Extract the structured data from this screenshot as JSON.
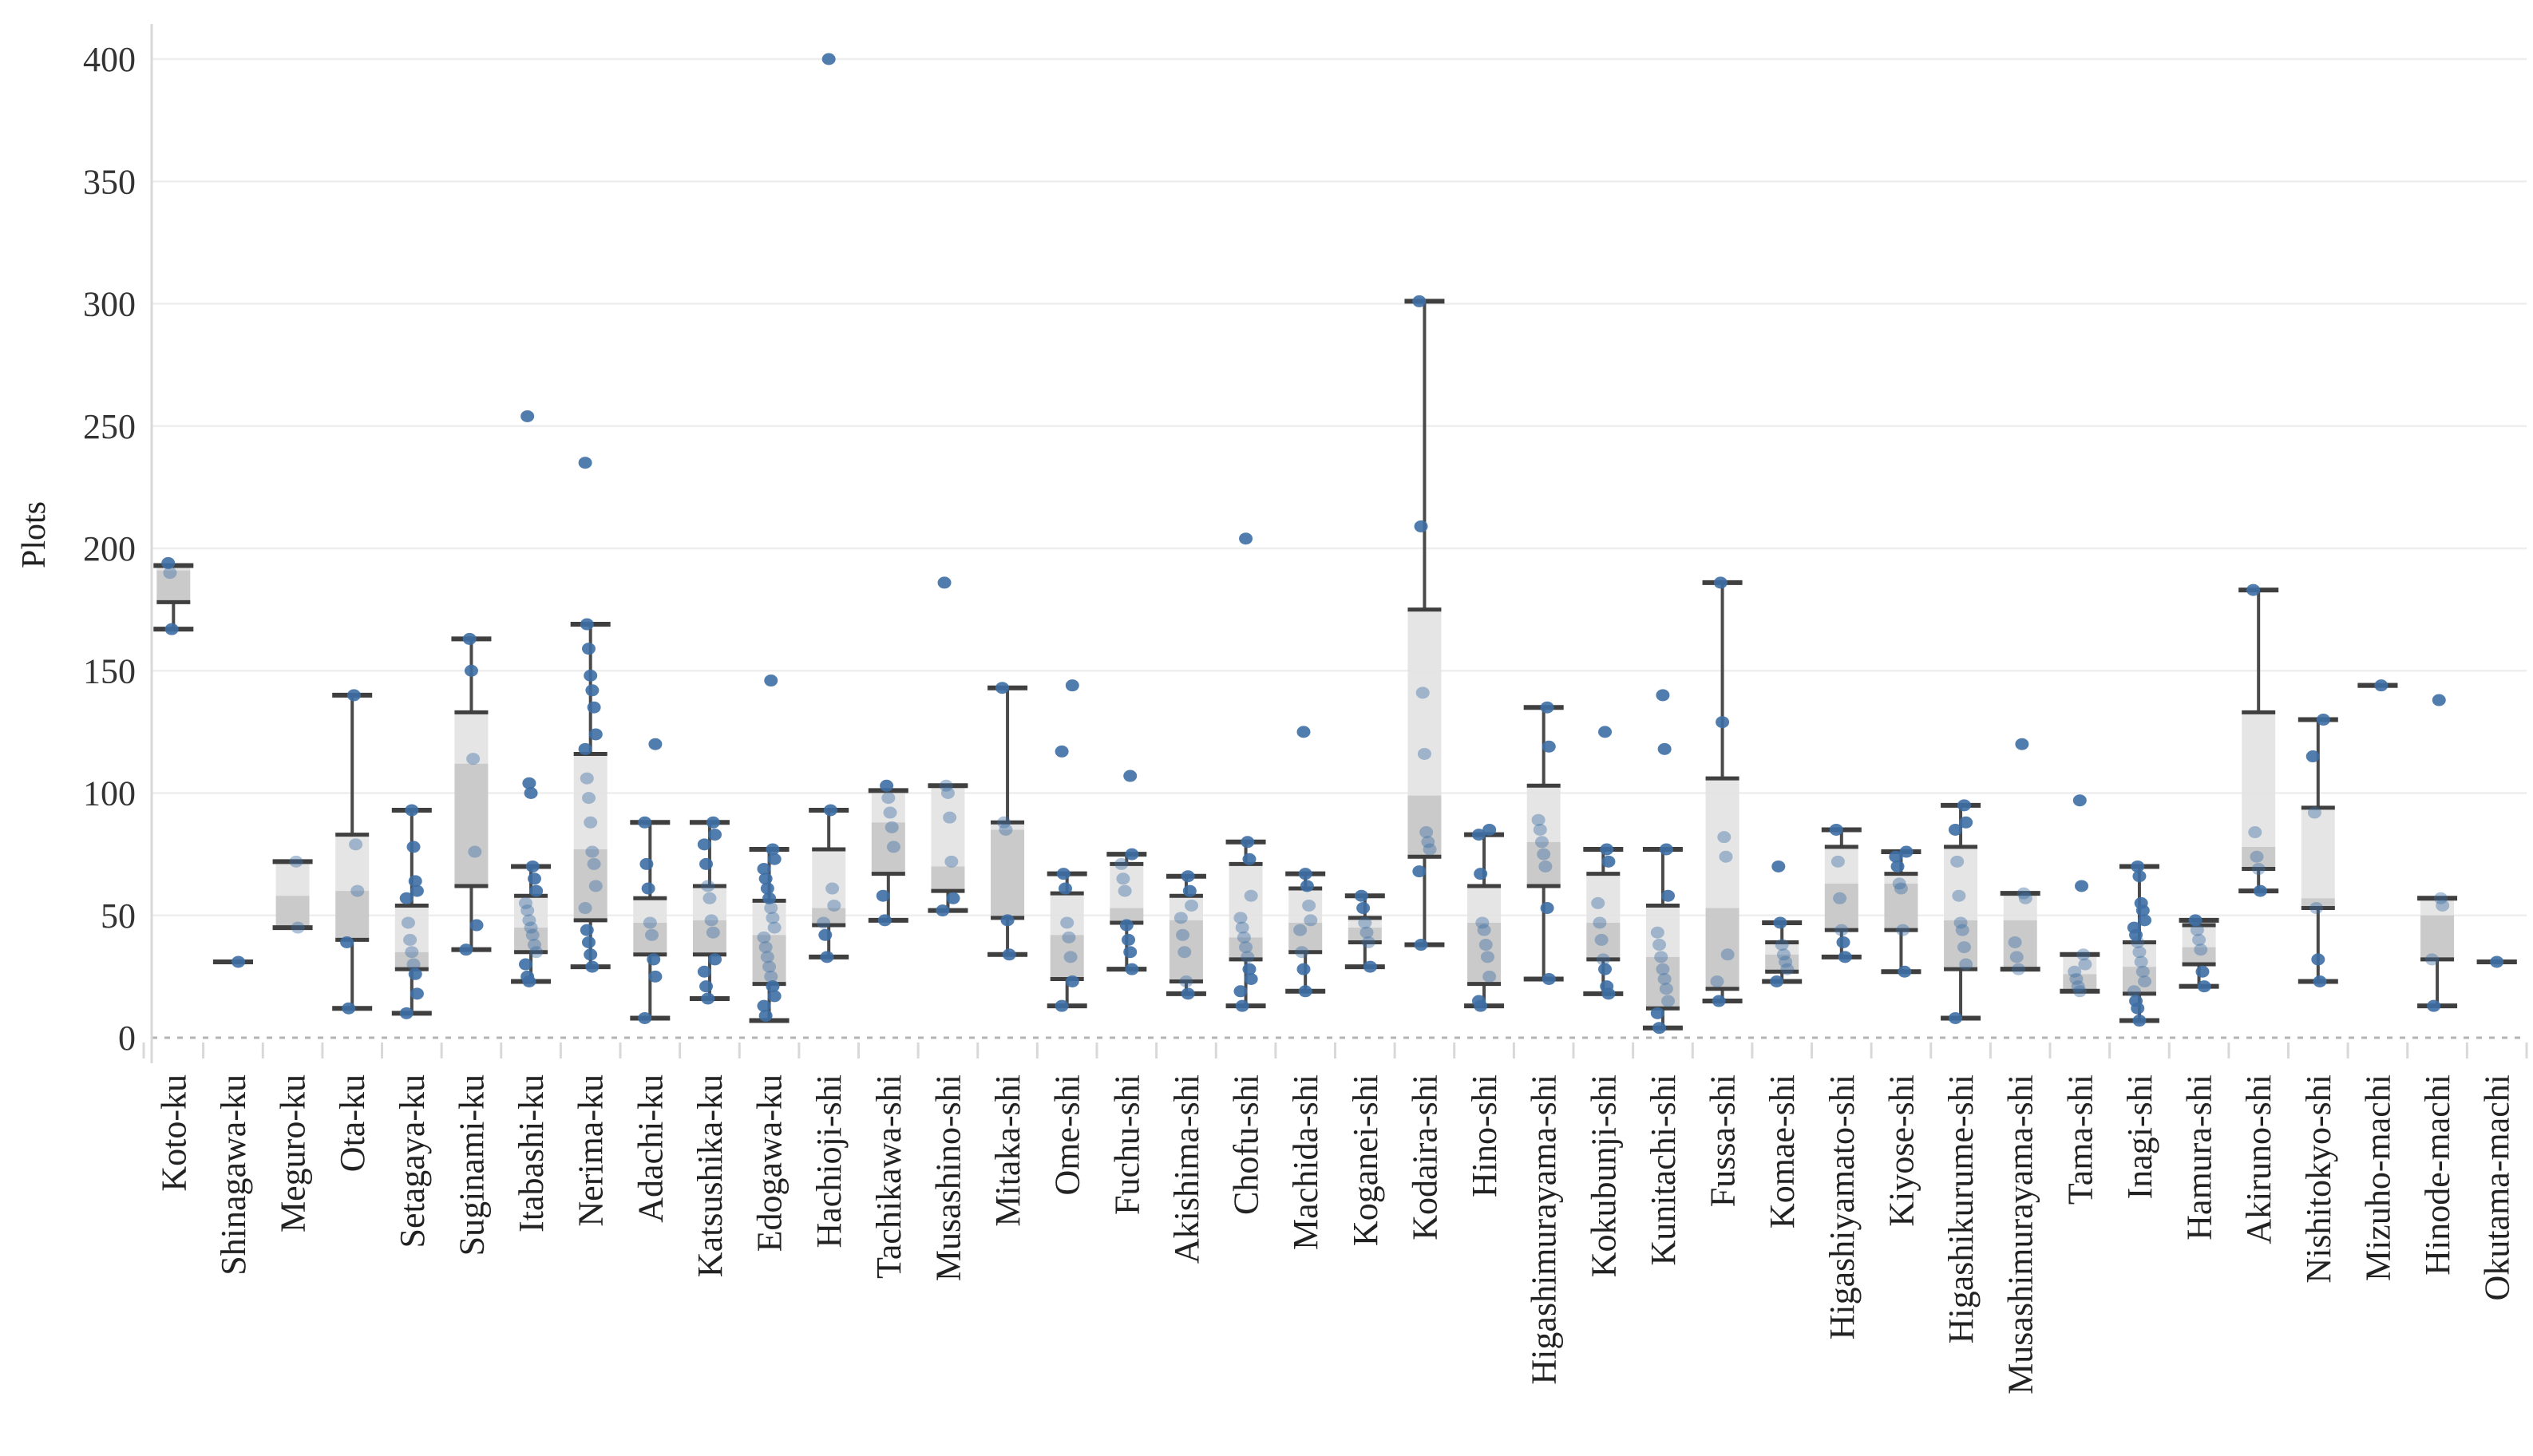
{
  "chart_data": {
    "type": "boxplot-with-points",
    "title": "",
    "ylabel": "Plots",
    "xlabel": "",
    "ylim": [
      0,
      420
    ],
    "yticks": [
      0,
      50,
      100,
      150,
      200,
      250,
      300,
      350,
      400
    ],
    "grid": "horizontal",
    "legend": "none",
    "categories": [
      "Koto-ku",
      "Shinagawa-ku",
      "Meguro-ku",
      "Ota-ku",
      "Setagaya-ku",
      "Suginami-ku",
      "Itabashi-ku",
      "Nerima-ku",
      "Adachi-ku",
      "Katsushika-ku",
      "Edogawa-ku",
      "Hachioji-shi",
      "Tachikawa-shi",
      "Musashino-shi",
      "Mitaka-shi",
      "Ome-shi",
      "Fuchu-shi",
      "Akishima-shi",
      "Chofu-shi",
      "Machida-shi",
      "Koganei-shi",
      "Kodaira-shi",
      "Hino-shi",
      "Higashimurayama-shi",
      "Kokubunji-shi",
      "Kunitachi-shi",
      "Fussa-shi",
      "Komae-shi",
      "Higashiyamato-shi",
      "Kiyose-shi",
      "Higashikurume-shi",
      "Musashimurayama-shi",
      "Tama-shi",
      "Inagi-shi",
      "Hamura-shi",
      "Akiruno-shi",
      "Nishitokyo-shi",
      "Mizuho-machi",
      "Hinode-machi",
      "Okutama-machi"
    ],
    "series": [
      {
        "name": "Koto-ku",
        "box": {
          "min": 167,
          "q1": 178,
          "median": 191,
          "q3": 193,
          "max": 193
        },
        "points": [
          194,
          190,
          167
        ]
      },
      {
        "name": "Shinagawa-ku",
        "box": {
          "min": 31,
          "q1": 31,
          "median": 31,
          "q3": 31,
          "max": 31
        },
        "points": [
          31
        ]
      },
      {
        "name": "Meguro-ku",
        "box": {
          "min": 45,
          "q1": 45,
          "median": 58,
          "q3": 72,
          "max": 72
        },
        "points": [
          72,
          45
        ]
      },
      {
        "name": "Ota-ku",
        "box": {
          "min": 12,
          "q1": 40,
          "median": 60,
          "q3": 83,
          "max": 140
        },
        "points": [
          140,
          79,
          60,
          39,
          12
        ]
      },
      {
        "name": "Setagaya-ku",
        "box": {
          "min": 10,
          "q1": 28,
          "median": 35,
          "q3": 54,
          "max": 93
        },
        "points": [
          93,
          78,
          64,
          60,
          57,
          47,
          40,
          35,
          30,
          26,
          18,
          10
        ]
      },
      {
        "name": "Suginami-ku",
        "box": {
          "min": 36,
          "q1": 62,
          "median": 112,
          "q3": 133,
          "max": 163
        },
        "points": [
          163,
          150,
          114,
          76,
          46,
          36
        ]
      },
      {
        "name": "Itabashi-ku",
        "box": {
          "min": 23,
          "q1": 35,
          "median": 45,
          "q3": 58,
          "max": 70
        },
        "points": [
          254,
          104,
          100,
          70,
          65,
          60,
          55,
          52,
          48,
          45,
          42,
          38,
          35,
          30,
          25,
          23
        ]
      },
      {
        "name": "Nerima-ku",
        "box": {
          "min": 29,
          "q1": 48,
          "median": 77,
          "q3": 116,
          "max": 169
        },
        "points": [
          235,
          169,
          159,
          148,
          142,
          135,
          124,
          118,
          106,
          98,
          88,
          76,
          71,
          62,
          53,
          44,
          39,
          34,
          29
        ]
      },
      {
        "name": "Adachi-ku",
        "box": {
          "min": 8,
          "q1": 34,
          "median": 47,
          "q3": 57,
          "max": 88
        },
        "points": [
          120,
          88,
          71,
          61,
          47,
          42,
          32,
          25,
          8
        ]
      },
      {
        "name": "Katsushika-ku",
        "box": {
          "min": 16,
          "q1": 34,
          "median": 48,
          "q3": 62,
          "max": 88
        },
        "points": [
          88,
          83,
          79,
          71,
          62,
          57,
          48,
          43,
          32,
          27,
          21,
          16
        ]
      },
      {
        "name": "Edogawa-ku",
        "box": {
          "min": 7,
          "q1": 22,
          "median": 42,
          "q3": 56,
          "max": 77
        },
        "points": [
          146,
          77,
          73,
          69,
          65,
          61,
          57,
          53,
          49,
          45,
          41,
          37,
          33,
          29,
          25,
          21,
          17,
          13,
          9
        ]
      },
      {
        "name": "Hachioji-shi",
        "box": {
          "min": 33,
          "q1": 46,
          "median": 53,
          "q3": 77,
          "max": 93
        },
        "points": [
          400,
          93,
          61,
          54,
          47,
          42,
          33
        ]
      },
      {
        "name": "Tachikawa-shi",
        "box": {
          "min": 48,
          "q1": 67,
          "median": 88,
          "q3": 101,
          "max": 101
        },
        "points": [
          103,
          98,
          92,
          86,
          78,
          58,
          48
        ]
      },
      {
        "name": "Musashino-shi",
        "box": {
          "min": 52,
          "q1": 60,
          "median": 70,
          "q3": 103,
          "max": 103
        },
        "points": [
          186,
          103,
          100,
          90,
          72,
          57,
          52
        ]
      },
      {
        "name": "Mitaka-shi",
        "box": {
          "min": 34,
          "q1": 49,
          "median": 85,
          "q3": 88,
          "max": 143
        },
        "points": [
          143,
          88,
          85,
          48,
          34
        ]
      },
      {
        "name": "Ome-shi",
        "box": {
          "min": 13,
          "q1": 24,
          "median": 42,
          "q3": 59,
          "max": 67
        },
        "points": [
          144,
          117,
          67,
          61,
          47,
          41,
          33,
          23,
          13
        ]
      },
      {
        "name": "Fuchu-shi",
        "box": {
          "min": 28,
          "q1": 47,
          "median": 53,
          "q3": 71,
          "max": 75
        },
        "points": [
          107,
          75,
          71,
          65,
          60,
          46,
          40,
          35,
          28
        ]
      },
      {
        "name": "Akishima-shi",
        "box": {
          "min": 18,
          "q1": 23,
          "median": 48,
          "q3": 58,
          "max": 66
        },
        "points": [
          66,
          60,
          54,
          49,
          42,
          35,
          23,
          18
        ]
      },
      {
        "name": "Chofu-shi",
        "box": {
          "min": 13,
          "q1": 32,
          "median": 41,
          "q3": 71,
          "max": 80
        },
        "points": [
          204,
          80,
          73,
          58,
          49,
          45,
          41,
          37,
          33,
          28,
          24,
          19,
          13
        ]
      },
      {
        "name": "Machida-shi",
        "box": {
          "min": 19,
          "q1": 35,
          "median": 47,
          "q3": 61,
          "max": 67
        },
        "points": [
          125,
          67,
          62,
          54,
          48,
          44,
          35,
          28,
          19
        ]
      },
      {
        "name": "Koganei-shi",
        "box": {
          "min": 29,
          "q1": 39,
          "median": 45,
          "q3": 49,
          "max": 58
        },
        "points": [
          58,
          53,
          47,
          43,
          39,
          29
        ]
      },
      {
        "name": "Kodaira-shi",
        "box": {
          "min": 38,
          "q1": 74,
          "median": 99,
          "q3": 175,
          "max": 301
        },
        "points": [
          301,
          209,
          141,
          116,
          84,
          80,
          77,
          68,
          38
        ]
      },
      {
        "name": "Hino-shi",
        "box": {
          "min": 13,
          "q1": 22,
          "median": 47,
          "q3": 62,
          "max": 83
        },
        "points": [
          85,
          83,
          67,
          47,
          44,
          38,
          33,
          25,
          15,
          13
        ]
      },
      {
        "name": "Higashimurayama-shi",
        "box": {
          "min": 24,
          "q1": 62,
          "median": 80,
          "q3": 103,
          "max": 135
        },
        "points": [
          135,
          119,
          89,
          85,
          80,
          75,
          70,
          53,
          24
        ]
      },
      {
        "name": "Kokubunji-shi",
        "box": {
          "min": 18,
          "q1": 32,
          "median": 47,
          "q3": 67,
          "max": 77
        },
        "points": [
          125,
          77,
          72,
          55,
          47,
          40,
          32,
          28,
          21,
          18
        ]
      },
      {
        "name": "Kunitachi-shi",
        "box": {
          "min": 4,
          "q1": 12,
          "median": 33,
          "q3": 54,
          "max": 77
        },
        "points": [
          140,
          118,
          77,
          58,
          43,
          38,
          33,
          28,
          24,
          20,
          15,
          10,
          4
        ]
      },
      {
        "name": "Fussa-shi",
        "box": {
          "min": 15,
          "q1": 20,
          "median": 53,
          "q3": 106,
          "max": 186
        },
        "points": [
          186,
          129,
          82,
          74,
          34,
          23,
          15
        ]
      },
      {
        "name": "Komae-shi",
        "box": {
          "min": 23,
          "q1": 27,
          "median": 34,
          "q3": 39,
          "max": 47
        },
        "points": [
          70,
          47,
          38,
          34,
          31,
          28,
          23
        ]
      },
      {
        "name": "Higashiyamato-shi",
        "box": {
          "min": 33,
          "q1": 44,
          "median": 63,
          "q3": 78,
          "max": 85
        },
        "points": [
          85,
          72,
          57,
          44,
          39,
          33
        ]
      },
      {
        "name": "Kiyose-shi",
        "box": {
          "min": 27,
          "q1": 44,
          "median": 63,
          "q3": 67,
          "max": 76
        },
        "points": [
          76,
          74,
          70,
          63,
          61,
          44,
          27
        ]
      },
      {
        "name": "Higashikurume-shi",
        "box": {
          "min": 8,
          "q1": 28,
          "median": 48,
          "q3": 78,
          "max": 95
        },
        "points": [
          95,
          88,
          85,
          72,
          58,
          47,
          44,
          37,
          30,
          8
        ]
      },
      {
        "name": "Musashimurayama-shi",
        "box": {
          "min": 28,
          "q1": 28,
          "median": 48,
          "q3": 59,
          "max": 59
        },
        "points": [
          120,
          59,
          57,
          39,
          33,
          28
        ]
      },
      {
        "name": "Tama-shi",
        "box": {
          "min": 19,
          "q1": 19,
          "median": 26,
          "q3": 34,
          "max": 34
        },
        "points": [
          97,
          62,
          34,
          30,
          27,
          24,
          21,
          19
        ]
      },
      {
        "name": "Inagi-shi",
        "box": {
          "min": 7,
          "q1": 18,
          "median": 29,
          "q3": 39,
          "max": 70
        },
        "points": [
          70,
          66,
          55,
          52,
          48,
          45,
          42,
          39,
          35,
          31,
          27,
          23,
          19,
          15,
          12,
          7
        ]
      },
      {
        "name": "Hamura-shi",
        "box": {
          "min": 21,
          "q1": 30,
          "median": 37,
          "q3": 46,
          "max": 48
        },
        "points": [
          48,
          44,
          40,
          36,
          27,
          21
        ]
      },
      {
        "name": "Akiruno-shi",
        "box": {
          "min": 60,
          "q1": 69,
          "median": 78,
          "q3": 133,
          "max": 183
        },
        "points": [
          183,
          84,
          74,
          69,
          60
        ]
      },
      {
        "name": "Nishitokyo-shi",
        "box": {
          "min": 23,
          "q1": 53,
          "median": 57,
          "q3": 94,
          "max": 130
        },
        "points": [
          130,
          115,
          92,
          53,
          32,
          23
        ]
      },
      {
        "name": "Mizuho-machi",
        "box": {
          "min": 144,
          "q1": 144,
          "median": 144,
          "q3": 144,
          "max": 144
        },
        "points": [
          144
        ]
      },
      {
        "name": "Hinode-machi",
        "box": {
          "min": 13,
          "q1": 32,
          "median": 50,
          "q3": 57,
          "max": 57
        },
        "points": [
          138,
          57,
          54,
          32,
          13
        ]
      },
      {
        "name": "Okutama-machi",
        "box": {
          "min": 31,
          "q1": 31,
          "median": 31,
          "q3": 31,
          "max": 31
        },
        "points": [
          31
        ]
      }
    ],
    "colors": {
      "point": "#3e6fa5",
      "box_upper_fill": "#e3e3e3",
      "box_lower_fill": "#c6c6c6",
      "box_edge": "#3f3f3f",
      "whisker": "#4a4a4a",
      "gridline": "#eeeeee",
      "zero_line": "#b3b3b3",
      "axis_line": "#d8d8d8",
      "tick_text": "#333333",
      "label_text": "#222222",
      "background": "#ffffff"
    }
  }
}
